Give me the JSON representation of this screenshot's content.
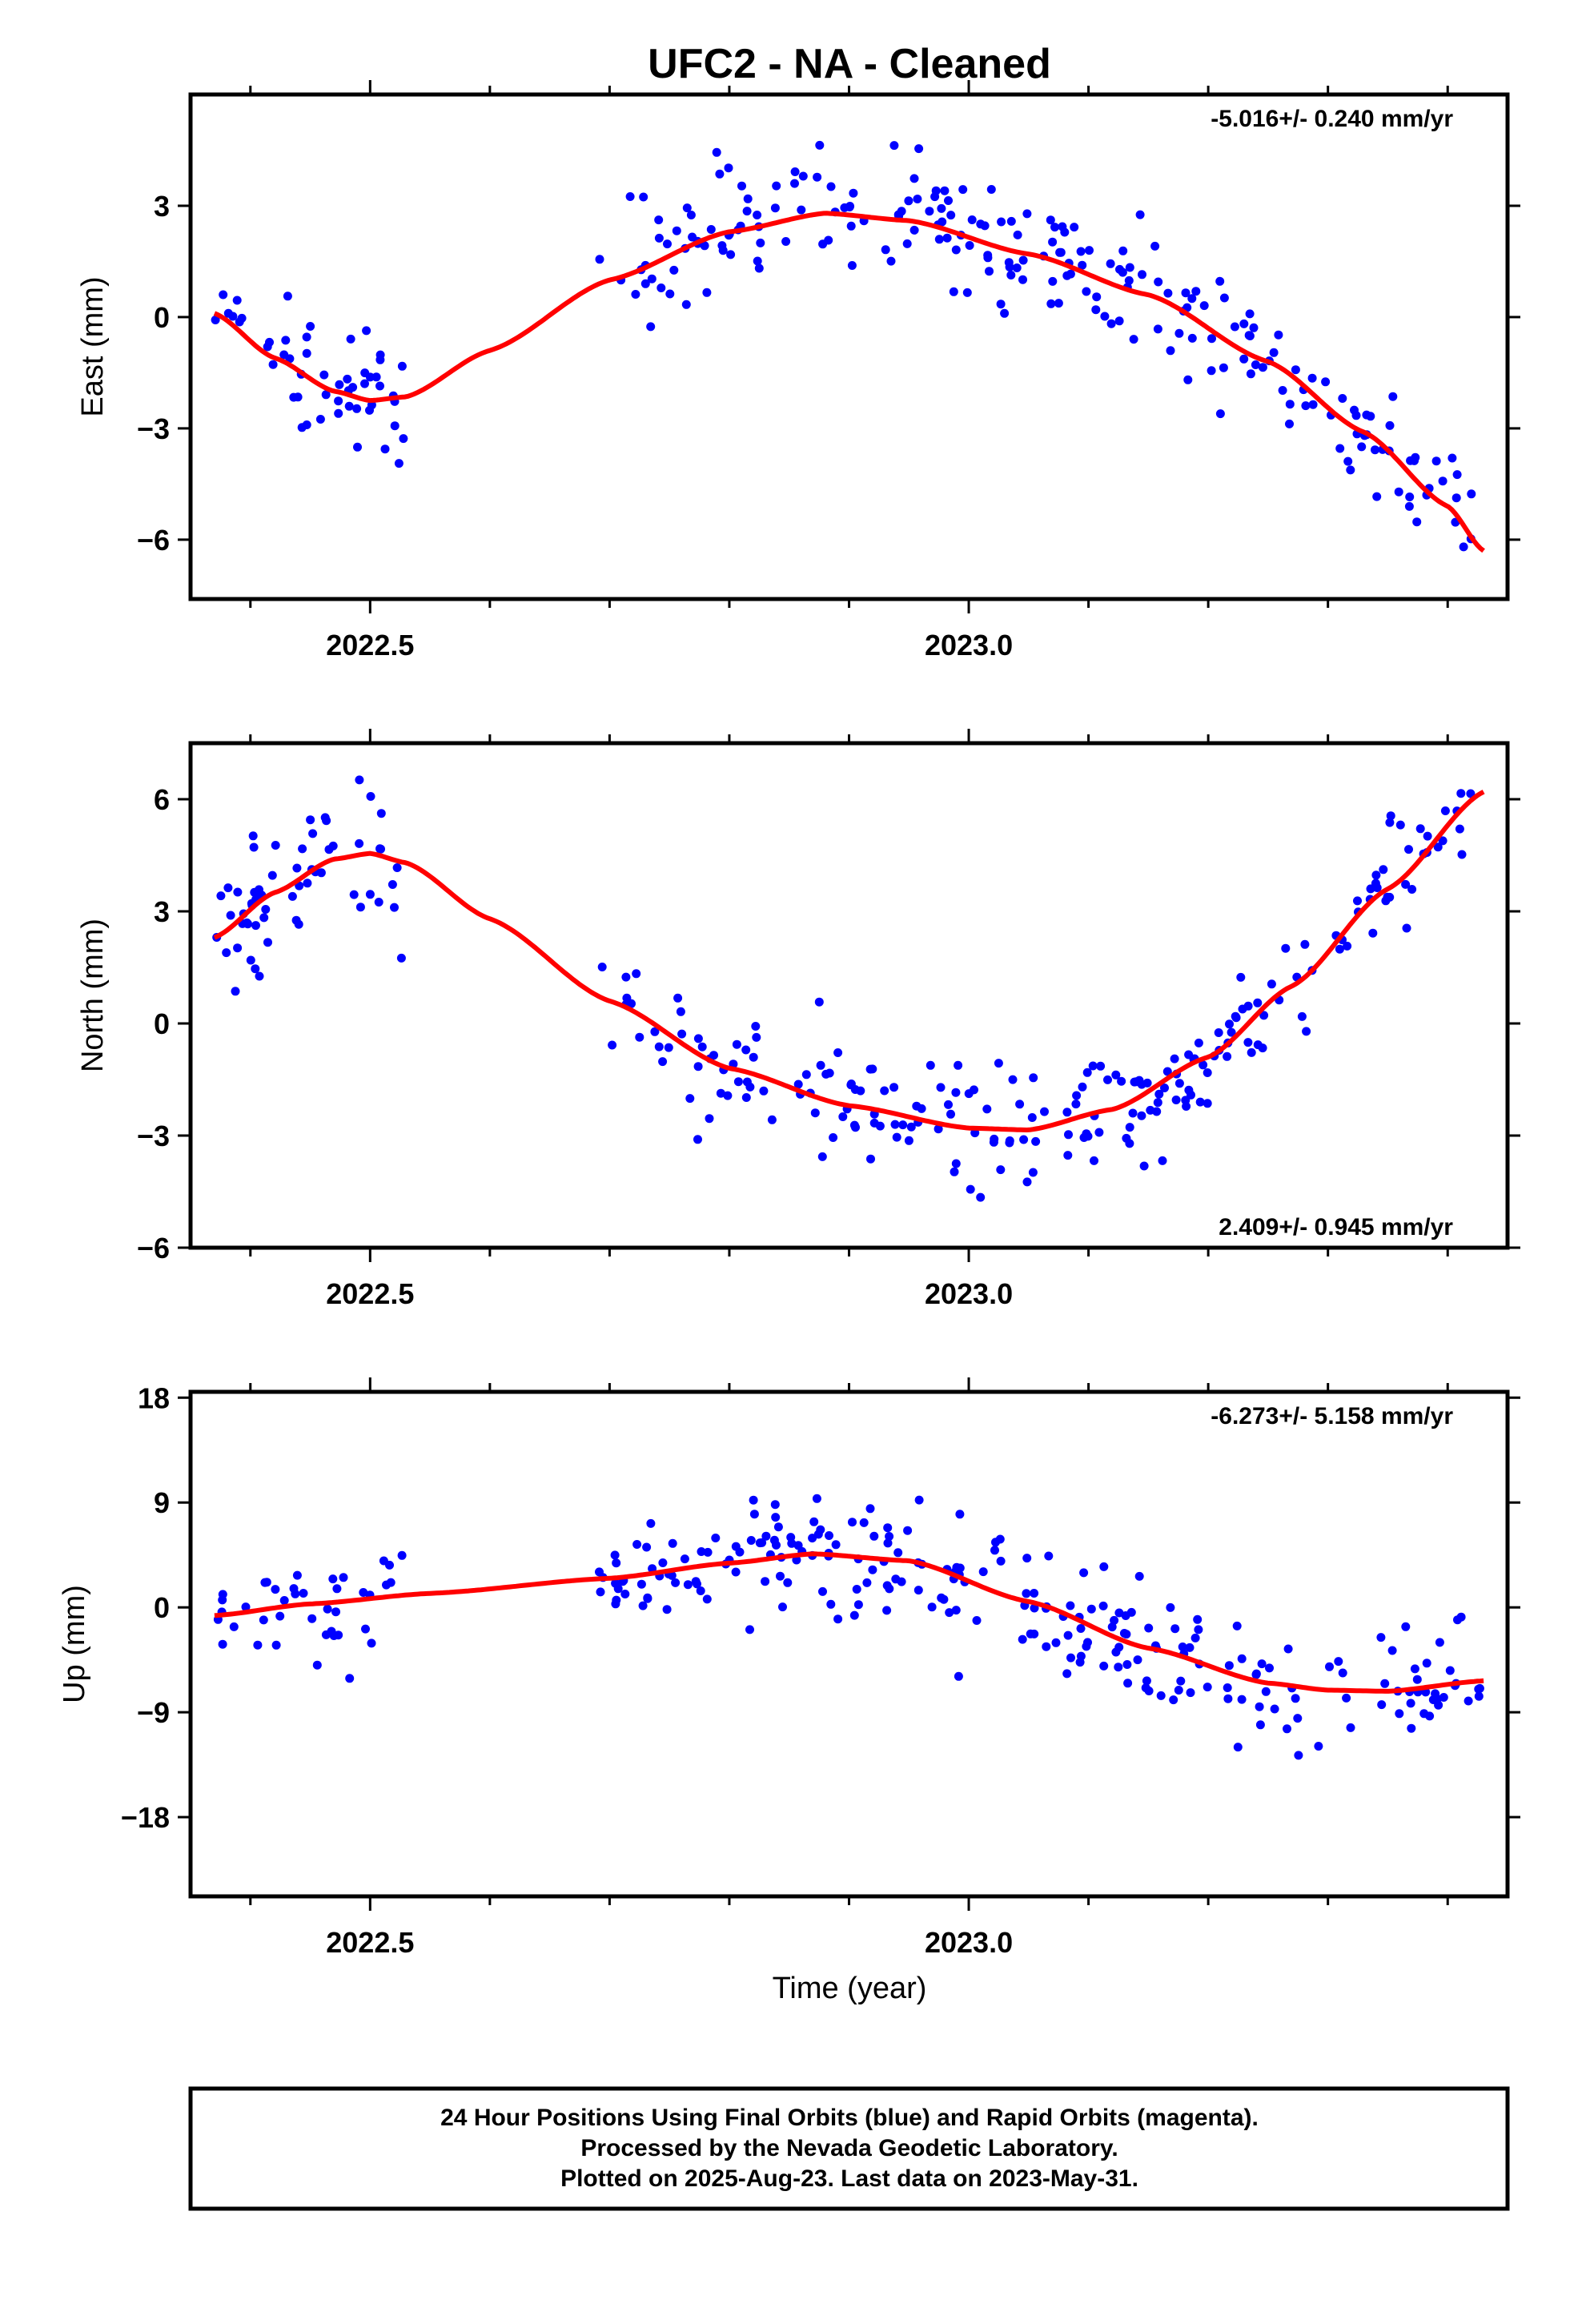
{
  "title": "UFC2  - NA - Cleaned",
  "x_axis": {
    "label": "Time (year)",
    "tick_labels": [
      "2022.5",
      "2023.0"
    ]
  },
  "footer": {
    "lines": [
      "24 Hour Positions Using Final Orbits (blue) and Rapid Orbits (magenta).",
      "Processed by the Nevada Geodetic Laboratory.",
      "Plotted on 2025-Aug-23. Last data on 2023-May-31."
    ]
  },
  "colors": {
    "points": "#0000ff",
    "fit": "#ff0000",
    "frame": "#000000"
  },
  "chart_data": [
    {
      "type": "scatter",
      "component": "east",
      "ylabel": "East (mm)",
      "rate_label": "-5.016+/- 0.240 mm/yr",
      "xlim": [
        2022.35,
        2023.45
      ],
      "ylim": [
        -7.6,
        6.0
      ],
      "y_ticks": [
        -6,
        -3,
        0,
        3
      ],
      "x_gap": [
        2022.53,
        2022.69
      ],
      "fit": [
        [
          2022.37,
          0.1
        ],
        [
          2022.42,
          -1.1
        ],
        [
          2022.47,
          -2.0
        ],
        [
          2022.5,
          -2.25
        ],
        [
          2022.53,
          -2.15
        ],
        [
          2022.6,
          -0.9
        ],
        [
          2022.7,
          1.0
        ],
        [
          2022.8,
          2.3
        ],
        [
          2022.88,
          2.8
        ],
        [
          2022.95,
          2.6
        ],
        [
          2023.05,
          1.7
        ],
        [
          2023.15,
          0.6
        ],
        [
          2023.25,
          -1.2
        ],
        [
          2023.33,
          -3.1
        ],
        [
          2023.4,
          -5.1
        ],
        [
          2023.43,
          -6.3
        ]
      ],
      "spread": 1.1,
      "series": [
        {
          "name": "Final Orbits (blue)",
          "n_points": 330
        }
      ]
    },
    {
      "type": "scatter",
      "component": "north",
      "ylabel": "North (mm)",
      "rate_label": "2.409+/- 0.945 mm/yr",
      "xlim": [
        2022.35,
        2023.45
      ],
      "ylim": [
        -6.0,
        7.5
      ],
      "y_ticks": [
        -6,
        -3,
        0,
        3,
        6
      ],
      "x_gap": [
        2022.53,
        2022.69
      ],
      "fit": [
        [
          2022.37,
          2.3
        ],
        [
          2022.42,
          3.5
        ],
        [
          2022.47,
          4.4
        ],
        [
          2022.5,
          4.55
        ],
        [
          2022.53,
          4.3
        ],
        [
          2022.6,
          2.8
        ],
        [
          2022.7,
          0.6
        ],
        [
          2022.8,
          -1.2
        ],
        [
          2022.9,
          -2.2
        ],
        [
          2023.0,
          -2.8
        ],
        [
          2023.05,
          -2.85
        ],
        [
          2023.12,
          -2.3
        ],
        [
          2023.2,
          -0.9
        ],
        [
          2023.27,
          1.0
        ],
        [
          2023.35,
          3.6
        ],
        [
          2023.43,
          6.2
        ]
      ],
      "spread": 1.2,
      "series": [
        {
          "name": "Final Orbits (blue)",
          "n_points": 330
        }
      ]
    },
    {
      "type": "scatter",
      "component": "up",
      "ylabel": "Up (mm)",
      "rate_label": "-6.273+/- 5.158 mm/yr",
      "xlim": [
        2022.35,
        2023.45
      ],
      "ylim": [
        -24.8,
        18.5
      ],
      "y_ticks": [
        -18,
        -9,
        0,
        9,
        18
      ],
      "x_gap": [
        2022.53,
        2022.69
      ],
      "fit": [
        [
          2022.37,
          -0.7
        ],
        [
          2022.45,
          0.3
        ],
        [
          2022.55,
          1.2
        ],
        [
          2022.7,
          2.5
        ],
        [
          2022.8,
          3.8
        ],
        [
          2022.87,
          4.6
        ],
        [
          2022.95,
          4.0
        ],
        [
          2023.05,
          0.5
        ],
        [
          2023.15,
          -3.5
        ],
        [
          2023.25,
          -6.5
        ],
        [
          2023.3,
          -7.1
        ],
        [
          2023.35,
          -7.2
        ],
        [
          2023.43,
          -6.3
        ]
      ],
      "spread": 3.6,
      "series": [
        {
          "name": "Final Orbits (blue)",
          "n_points": 330
        }
      ]
    }
  ]
}
